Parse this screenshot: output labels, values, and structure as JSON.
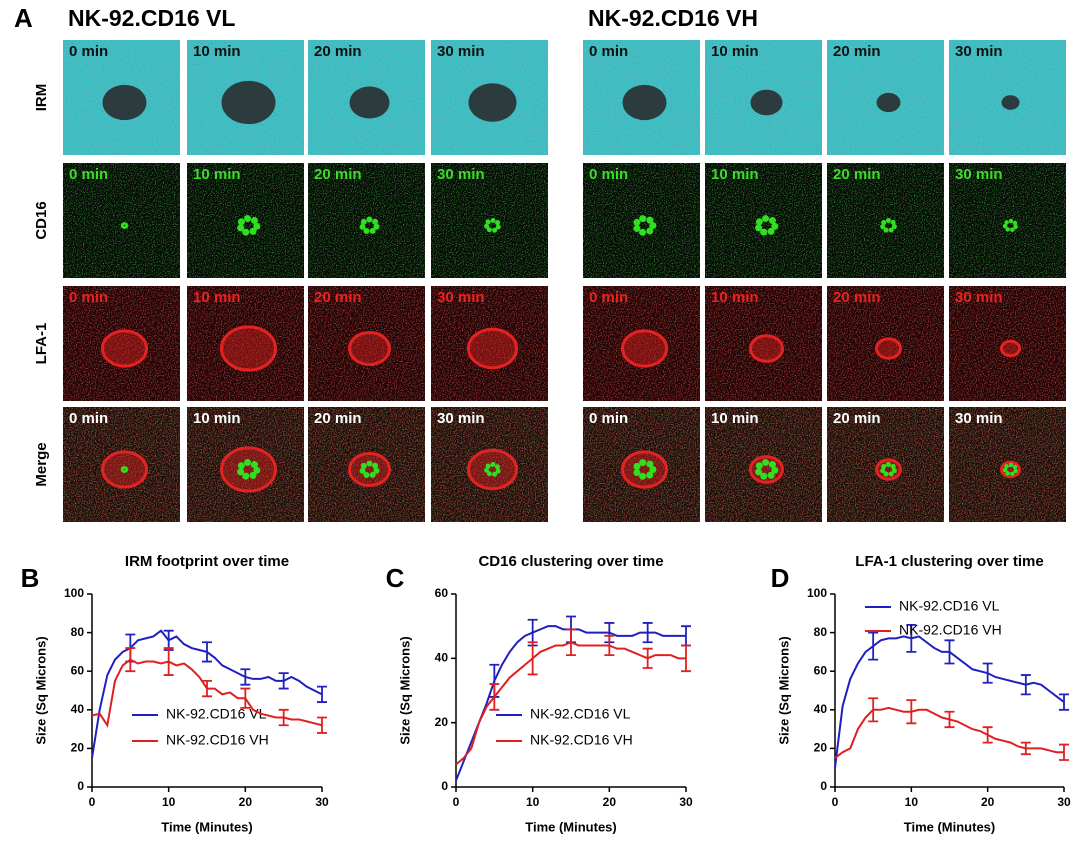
{
  "figure": {
    "panel": "A",
    "groups": [
      {
        "title": "NK-92.CD16  VL"
      },
      {
        "title": "NK-92.CD16  VH"
      }
    ],
    "row_labels": [
      "IRM",
      "CD16",
      "LFA-1",
      "Merge"
    ],
    "time_labels": [
      "0 min",
      "10 min",
      "20 min",
      "30 min"
    ]
  },
  "chart_data": [
    {
      "type": "line",
      "panel": "B",
      "title": "IRM footprint over time",
      "xlabel": "Time (Minutes)",
      "ylabel": "Size (Sq Microns)",
      "x": [
        0,
        1,
        2,
        3,
        4,
        5,
        6,
        7,
        8,
        9,
        10,
        11,
        12,
        13,
        14,
        15,
        16,
        17,
        18,
        19,
        20,
        21,
        22,
        23,
        24,
        25,
        26,
        27,
        28,
        29,
        30
      ],
      "xlim": [
        0,
        30
      ],
      "xticks": [
        0,
        10,
        20,
        30
      ],
      "ylim": [
        0,
        100
      ],
      "yticks": [
        0,
        20,
        40,
        60,
        80,
        100
      ],
      "legend": "lower-center",
      "series": [
        {
          "name": "NK-92.CD16 VL",
          "color": "#2020c0",
          "values": [
            15,
            40,
            58,
            66,
            70,
            72,
            76,
            77,
            78,
            81,
            76,
            78,
            74,
            72,
            71,
            70,
            67,
            63,
            61,
            59,
            57,
            56,
            56,
            57,
            55,
            55,
            57,
            55,
            52,
            50,
            48
          ],
          "errors": [
            null,
            null,
            null,
            null,
            null,
            7,
            null,
            null,
            null,
            null,
            5,
            null,
            null,
            null,
            null,
            5,
            null,
            null,
            null,
            null,
            4,
            null,
            null,
            null,
            null,
            4,
            null,
            null,
            null,
            null,
            4
          ]
        },
        {
          "name": "NK-92.CD16 VH",
          "color": "#e02020",
          "values": [
            37,
            38,
            32,
            55,
            63,
            66,
            64,
            65,
            65,
            64,
            65,
            63,
            64,
            61,
            57,
            51,
            51,
            48,
            49,
            46,
            46,
            40,
            38,
            37,
            36,
            36,
            35,
            35,
            34,
            33,
            32
          ],
          "errors": [
            null,
            null,
            null,
            null,
            null,
            6,
            null,
            null,
            null,
            null,
            7,
            null,
            null,
            null,
            null,
            4,
            null,
            null,
            null,
            null,
            5,
            null,
            null,
            null,
            null,
            4,
            null,
            null,
            null,
            null,
            4
          ]
        }
      ]
    },
    {
      "type": "line",
      "panel": "C",
      "title": "CD16 clustering over time",
      "xlabel": "Time (Minutes)",
      "ylabel": "Size (Sq Microns)",
      "x": [
        0,
        1,
        2,
        3,
        4,
        5,
        6,
        7,
        8,
        9,
        10,
        11,
        12,
        13,
        14,
        15,
        16,
        17,
        18,
        19,
        20,
        21,
        22,
        23,
        24,
        25,
        26,
        27,
        28,
        29,
        30
      ],
      "xlim": [
        0,
        30
      ],
      "xticks": [
        0,
        10,
        20,
        30
      ],
      "ylim": [
        0,
        60
      ],
      "yticks": [
        0,
        20,
        40,
        60
      ],
      "legend": "lower-center",
      "series": [
        {
          "name": "NK-92.CD16 VL",
          "color": "#2020c0",
          "values": [
            2,
            8,
            14,
            20,
            26,
            33,
            38,
            42,
            45,
            47,
            48,
            49,
            50,
            50,
            49,
            49,
            49,
            48,
            48,
            48,
            48,
            47,
            47,
            47,
            48,
            48,
            48,
            47,
            47,
            47,
            47
          ],
          "errors": [
            null,
            null,
            null,
            null,
            null,
            5,
            null,
            null,
            null,
            null,
            4,
            null,
            null,
            null,
            null,
            4,
            null,
            null,
            null,
            null,
            3,
            null,
            null,
            null,
            null,
            3,
            null,
            null,
            null,
            null,
            3
          ]
        },
        {
          "name": "NK-92.CD16 VH",
          "color": "#e02020",
          "values": [
            7,
            9,
            12,
            20,
            25,
            28,
            31,
            34,
            36,
            38,
            40,
            42,
            43,
            44,
            44,
            45,
            44,
            44,
            44,
            44,
            44,
            43,
            43,
            42,
            41,
            40,
            41,
            41,
            41,
            40,
            40
          ],
          "errors": [
            null,
            null,
            null,
            null,
            null,
            4,
            null,
            null,
            null,
            null,
            5,
            null,
            null,
            null,
            null,
            4,
            null,
            null,
            null,
            null,
            3,
            null,
            null,
            null,
            null,
            3,
            null,
            null,
            null,
            null,
            4
          ]
        }
      ]
    },
    {
      "type": "line",
      "panel": "D",
      "title": "LFA-1 clustering over time",
      "xlabel": "Time (Minutes)",
      "ylabel": "Size (Sq Microns)",
      "x": [
        0,
        1,
        2,
        3,
        4,
        5,
        6,
        7,
        8,
        9,
        10,
        11,
        12,
        13,
        14,
        15,
        16,
        17,
        18,
        19,
        20,
        21,
        22,
        23,
        24,
        25,
        26,
        27,
        28,
        29,
        30
      ],
      "xlim": [
        0,
        30
      ],
      "xticks": [
        0,
        10,
        20,
        30
      ],
      "ylim": [
        0,
        100
      ],
      "yticks": [
        0,
        20,
        40,
        60,
        80,
        100
      ],
      "legend": "upper-left",
      "series": [
        {
          "name": "NK-92.CD16 VL",
          "color": "#2020c0",
          "values": [
            10,
            42,
            56,
            64,
            70,
            73,
            76,
            77,
            77,
            78,
            77,
            78,
            75,
            72,
            70,
            70,
            67,
            64,
            61,
            60,
            59,
            57,
            56,
            55,
            54,
            53,
            54,
            53,
            50,
            47,
            44
          ],
          "errors": [
            null,
            null,
            null,
            null,
            null,
            7,
            null,
            null,
            null,
            null,
            7,
            null,
            null,
            null,
            null,
            6,
            null,
            null,
            null,
            null,
            5,
            null,
            null,
            null,
            null,
            5,
            null,
            null,
            null,
            null,
            4
          ]
        },
        {
          "name": "NK-92.CD16 VH",
          "color": "#e02020",
          "values": [
            15,
            18,
            20,
            30,
            36,
            40,
            40,
            41,
            40,
            39,
            39,
            40,
            40,
            38,
            36,
            35,
            34,
            32,
            30,
            29,
            27,
            25,
            24,
            23,
            21,
            20,
            20,
            20,
            19,
            18,
            18
          ],
          "errors": [
            null,
            null,
            null,
            null,
            null,
            6,
            null,
            null,
            null,
            null,
            6,
            null,
            null,
            null,
            null,
            4,
            null,
            null,
            null,
            null,
            4,
            null,
            null,
            null,
            null,
            3,
            null,
            null,
            null,
            null,
            4
          ]
        }
      ]
    }
  ]
}
